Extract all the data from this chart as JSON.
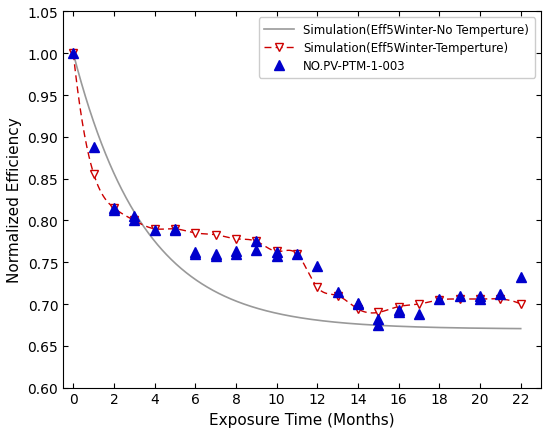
{
  "xlabel": "Exposure Time (Months)",
  "ylabel": "Normalized Efficiency",
  "xlim": [
    -0.5,
    23
  ],
  "ylim": [
    0.6,
    1.05
  ],
  "xticks": [
    0,
    2,
    4,
    6,
    8,
    10,
    12,
    14,
    16,
    18,
    20,
    22
  ],
  "yticks": [
    0.6,
    0.65,
    0.7,
    0.75,
    0.8,
    0.85,
    0.9,
    0.95,
    1.0,
    1.05
  ],
  "sim_temp_marker_x": [
    0,
    1,
    2,
    3,
    4,
    5,
    6,
    7,
    8,
    9,
    10,
    11,
    12,
    13,
    14,
    15,
    16,
    17,
    18,
    19,
    20,
    21,
    22
  ],
  "sim_temp_marker_y": [
    1.0,
    0.856,
    0.815,
    0.8,
    0.79,
    0.79,
    0.785,
    0.783,
    0.778,
    0.775,
    0.763,
    0.76,
    0.72,
    0.71,
    0.694,
    0.69,
    0.697,
    0.7,
    0.705,
    0.706,
    0.706,
    0.706,
    0.7
  ],
  "data_x": [
    0,
    1,
    2,
    2,
    3,
    3,
    4,
    5,
    5,
    6,
    6,
    7,
    7,
    8,
    8,
    9,
    9,
    10,
    10,
    11,
    12,
    13,
    14,
    14,
    15,
    15,
    16,
    16,
    17,
    18,
    19,
    20,
    20,
    21,
    22
  ],
  "data_y": [
    1.0,
    0.888,
    0.815,
    0.813,
    0.805,
    0.8,
    0.789,
    0.79,
    0.788,
    0.762,
    0.76,
    0.76,
    0.758,
    0.763,
    0.76,
    0.775,
    0.765,
    0.762,
    0.758,
    0.76,
    0.745,
    0.715,
    0.701,
    0.7,
    0.682,
    0.675,
    0.693,
    0.69,
    0.688,
    0.706,
    0.71,
    0.71,
    0.706,
    0.712,
    0.732
  ],
  "color_sim_no_temp": "#999999",
  "color_sim_temp": "#cc0000",
  "color_data": "#0000cc",
  "no_temp_A": 0.33,
  "no_temp_tau": 3.5,
  "no_temp_C": 0.67,
  "legend_sim_no_temp": "Simulation(Eff5Winter-No Temperture)",
  "legend_sim_temp": "Simulation(Eff5Winter-Temperture)",
  "legend_data": "NO.PV-PTM-1-003",
  "figsize": [
    5.48,
    4.35
  ],
  "dpi": 100
}
